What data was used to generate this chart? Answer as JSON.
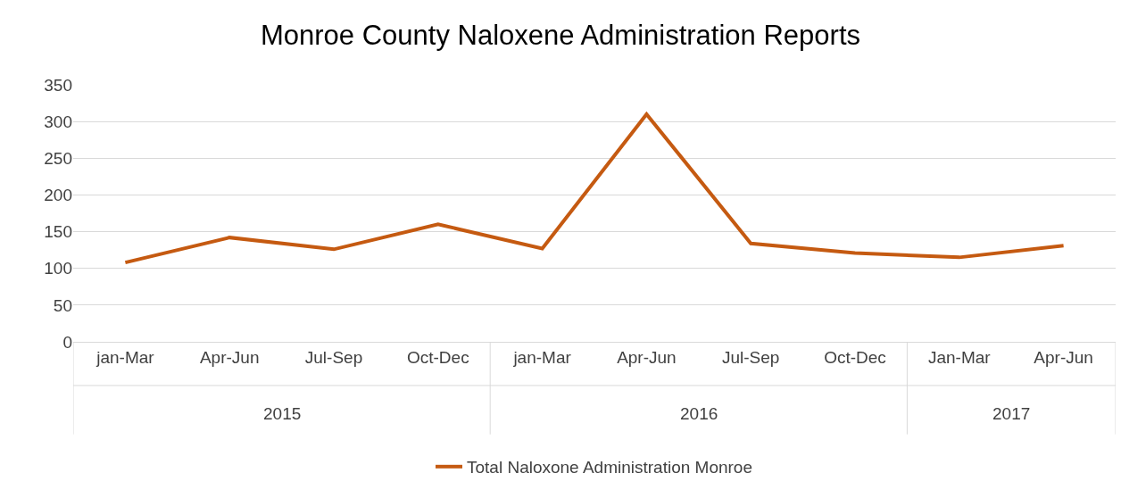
{
  "chart_data": {
    "type": "line",
    "title": "Monroe County Naloxene Administration Reports",
    "categories": [
      "jan-Mar",
      "Apr-Jun",
      "Jul-Sep",
      "Oct-Dec",
      "jan-Mar",
      "Apr-Jun",
      "Jul-Sep",
      "Oct-Dec",
      "Jan-Mar",
      "Apr-Jun"
    ],
    "series": [
      {
        "name": "Total Naloxone Administration Monroe",
        "color": "#c55a11",
        "values": [
          108,
          142,
          126,
          160,
          127,
          310,
          134,
          121,
          115,
          131
        ]
      }
    ],
    "annotations": [
      "2015",
      "2016",
      "2017"
    ],
    "ylim": [
      0,
      350
    ],
    "yticks": [
      0,
      50,
      100,
      150,
      200,
      250,
      300,
      350
    ],
    "grid": "y",
    "legend": "bottom",
    "marker": "none",
    "line_style": "solid"
  }
}
